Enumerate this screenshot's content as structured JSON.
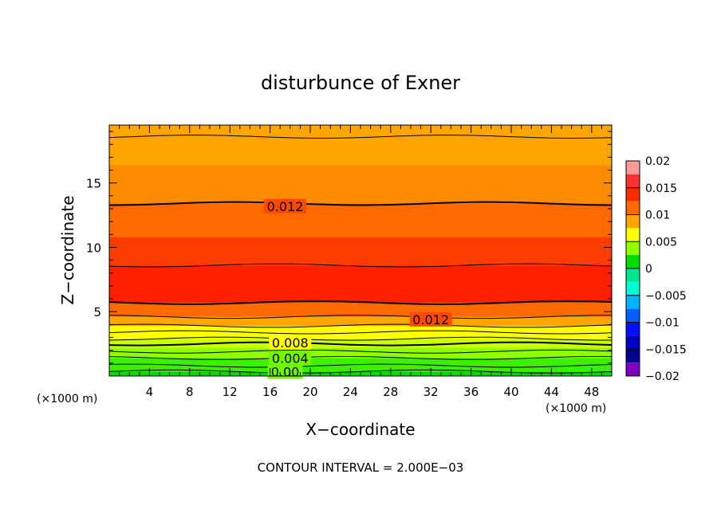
{
  "chart_data": {
    "type": "heatmap",
    "title": "disturbunce of Exner",
    "xlabel": "X−coordinate",
    "ylabel": "Z−coordinate",
    "x_unit": "(×1000 m)",
    "y_unit": "(×1000 m)",
    "xlim": [
      0,
      50
    ],
    "ylim": [
      0,
      19.5
    ],
    "x_ticks": [
      "4",
      "8",
      "12",
      "16",
      "20",
      "24",
      "28",
      "32",
      "36",
      "40",
      "44",
      "48"
    ],
    "y_ticks": [
      "5",
      "10",
      "15"
    ],
    "contour_interval_label": "CONTOUR INTERVAL = 2.000E−03",
    "contour_labels": [
      {
        "text": "0.012",
        "x": 17.5,
        "z": 13.2
      },
      {
        "text": "0.012",
        "x": 32.0,
        "z": 4.4
      },
      {
        "text": "0.008",
        "x": 18.0,
        "z": 2.6
      },
      {
        "text": "0.004",
        "x": 18.0,
        "z": 1.4
      },
      {
        "text": "0.00",
        "x": 17.5,
        "z": 0.35
      }
    ],
    "colorbar": {
      "ticks": [
        "0.02",
        "0.015",
        "0.01",
        "0.005",
        "0",
        "−0.005",
        "−0.01",
        "−0.015",
        "−0.02"
      ],
      "levels": [
        {
          "from": 0.0175,
          "to": 0.02,
          "color": "#ff9a9a"
        },
        {
          "from": 0.015,
          "to": 0.0175,
          "color": "#ff3030"
        },
        {
          "from": 0.0125,
          "to": 0.015,
          "color": "#ff2a00"
        },
        {
          "from": 0.01,
          "to": 0.0125,
          "color": "#ff6a00"
        },
        {
          "from": 0.0075,
          "to": 0.01,
          "color": "#ffa500"
        },
        {
          "from": 0.005,
          "to": 0.0075,
          "color": "#ffff00"
        },
        {
          "from": 0.0025,
          "to": 0.005,
          "color": "#90ff00"
        },
        {
          "from": 0.0,
          "to": 0.0025,
          "color": "#00dc00"
        },
        {
          "from": -0.0025,
          "to": 0.0,
          "color": "#00e690"
        },
        {
          "from": -0.005,
          "to": -0.0025,
          "color": "#00ffd0"
        },
        {
          "from": -0.0075,
          "to": -0.005,
          "color": "#00b4ff"
        },
        {
          "from": -0.01,
          "to": -0.0075,
          "color": "#0060ff"
        },
        {
          "from": -0.0125,
          "to": -0.01,
          "color": "#0010ff"
        },
        {
          "from": -0.015,
          "to": -0.0125,
          "color": "#0000c0"
        },
        {
          "from": -0.0175,
          "to": -0.015,
          "color": "#000090"
        },
        {
          "from": -0.02,
          "to": -0.0175,
          "color": "#8000c0"
        }
      ]
    },
    "bands": [
      {
        "z_from": 0.0,
        "z_to": 0.35,
        "color": "#00dc00"
      },
      {
        "z_from": 0.35,
        "z_to": 1.4,
        "color": "#3cf000"
      },
      {
        "z_from": 1.4,
        "z_to": 2.2,
        "color": "#90ff00"
      },
      {
        "z_from": 2.2,
        "z_to": 2.9,
        "color": "#ccff00"
      },
      {
        "z_from": 2.9,
        "z_to": 3.9,
        "color": "#ffff00"
      },
      {
        "z_from": 3.9,
        "z_to": 4.6,
        "color": "#ffa500"
      },
      {
        "z_from": 4.6,
        "z_to": 5.7,
        "color": "#ff6a00"
      },
      {
        "z_from": 5.7,
        "z_to": 8.6,
        "color": "#ff2000"
      },
      {
        "z_from": 8.6,
        "z_to": 10.8,
        "color": "#ff3c00"
      },
      {
        "z_from": 10.8,
        "z_to": 13.4,
        "color": "#ff6a00"
      },
      {
        "z_from": 13.4,
        "z_to": 16.4,
        "color": "#ff8c00"
      },
      {
        "z_from": 16.4,
        "z_to": 18.6,
        "color": "#ffa500"
      },
      {
        "z_from": 18.6,
        "z_to": 19.5,
        "color": "#ffa500"
      }
    ],
    "contour_lines": [
      0.35,
      0.8,
      1.4,
      1.9,
      2.5,
      2.9,
      3.4,
      3.9,
      4.6,
      5.7,
      8.6,
      13.4,
      18.6
    ]
  }
}
